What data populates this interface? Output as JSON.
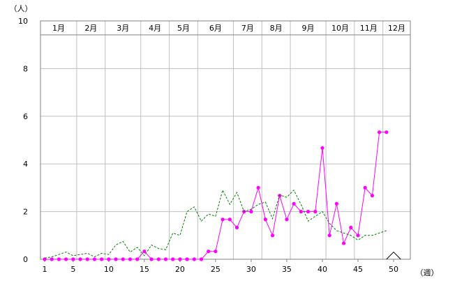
{
  "chart_data": {
    "type": "line",
    "title": "",
    "ylabel": "（人）",
    "xlabel": "（週）",
    "ylim": [
      0,
      10
    ],
    "xlim": [
      1,
      52
    ],
    "yticks": [
      "0",
      "2",
      "4",
      "6",
      "8",
      "10"
    ],
    "xticks": [
      {
        "week": 1,
        "label": "1"
      },
      {
        "week": 5,
        "label": "5"
      },
      {
        "week": 10,
        "label": "10"
      },
      {
        "week": 15,
        "label": "15"
      },
      {
        "week": 20,
        "label": "20"
      },
      {
        "week": 25,
        "label": "25"
      },
      {
        "week": 30,
        "label": "30"
      },
      {
        "week": 35,
        "label": "35"
      },
      {
        "week": 40,
        "label": "40"
      },
      {
        "week": 45,
        "label": "45"
      },
      {
        "week": 50,
        "label": "50"
      }
    ],
    "months": [
      {
        "label": "1月",
        "from": 1,
        "to": 5
      },
      {
        "label": "2月",
        "from": 5,
        "to": 9
      },
      {
        "label": "3月",
        "from": 9,
        "to": 14
      },
      {
        "label": "4月",
        "from": 14,
        "to": 18
      },
      {
        "label": "5月",
        "from": 18,
        "to": 22
      },
      {
        "label": "6月",
        "from": 22,
        "to": 27
      },
      {
        "label": "7月",
        "from": 27,
        "to": 31
      },
      {
        "label": "8月",
        "from": 31,
        "to": 35
      },
      {
        "label": "9月",
        "from": 35,
        "to": 40
      },
      {
        "label": "10月",
        "from": 40,
        "to": 44
      },
      {
        "label": "11月",
        "from": 44,
        "to": 48
      },
      {
        "label": "12月",
        "from": 48,
        "to": 53
      }
    ],
    "grid": true,
    "series": [
      {
        "color": "#ff00ff",
        "style": "solid-with-markers",
        "x": [
          1,
          2,
          3,
          4,
          5,
          6,
          7,
          8,
          9,
          10,
          11,
          12,
          13,
          14,
          15,
          16,
          17,
          18,
          19,
          20,
          21,
          22,
          23,
          24,
          25,
          26,
          27,
          28,
          29,
          30,
          31,
          32,
          33,
          34,
          35,
          36,
          37,
          38,
          39,
          40,
          41,
          42,
          43,
          44,
          45,
          46,
          47,
          48,
          49
        ],
        "values": [
          0,
          0,
          0,
          0,
          0,
          0,
          0,
          0,
          0,
          0,
          0,
          0,
          0,
          0,
          0.33,
          0,
          0,
          0,
          0,
          0,
          0,
          0,
          0,
          0.33,
          0.33,
          1.67,
          1.67,
          1.33,
          2.0,
          2.0,
          3.0,
          1.67,
          1.0,
          2.67,
          1.67,
          2.33,
          2.0,
          2.0,
          2.0,
          4.67,
          1.0,
          2.33,
          0.67,
          1.33,
          1.0,
          3.0,
          2.67,
          5.33,
          5.33
        ]
      },
      {
        "color": "#008000",
        "style": "dashed",
        "x": [
          1,
          2,
          3,
          4,
          5,
          6,
          7,
          8,
          9,
          10,
          11,
          12,
          13,
          14,
          15,
          16,
          17,
          18,
          19,
          20,
          21,
          22,
          23,
          24,
          25,
          26,
          27,
          28,
          29,
          30,
          31,
          32,
          33,
          34,
          35,
          36,
          37,
          38,
          39,
          40,
          41,
          42,
          43,
          44,
          45,
          46,
          47,
          48,
          49
        ],
        "values": [
          0.05,
          0.1,
          0.2,
          0.3,
          0.15,
          0.2,
          0.25,
          0.1,
          0.25,
          0.2,
          0.6,
          0.75,
          0.3,
          0.5,
          0.15,
          0.6,
          0.45,
          0.4,
          1.1,
          1.0,
          2.0,
          2.2,
          1.6,
          1.9,
          1.8,
          2.9,
          2.3,
          2.8,
          2.0,
          2.1,
          2.3,
          2.4,
          1.7,
          2.7,
          2.6,
          2.9,
          2.3,
          1.6,
          1.8,
          2.0,
          1.5,
          1.2,
          1.1,
          1.0,
          0.8,
          1.0,
          1.0,
          1.1,
          1.2
        ]
      },
      {
        "color": "#000000",
        "style": "solid",
        "x": [
          49,
          50,
          51
        ],
        "values": [
          0,
          0.3,
          0
        ]
      }
    ]
  }
}
